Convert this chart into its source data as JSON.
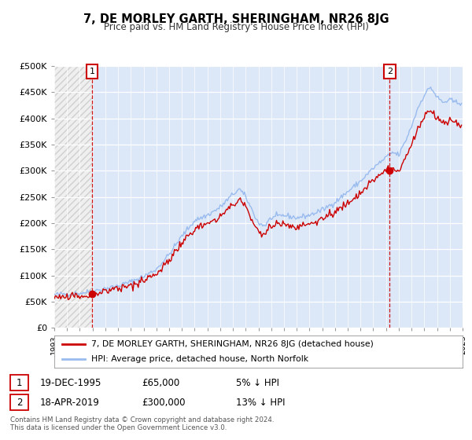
{
  "title": "7, DE MORLEY GARTH, SHERINGHAM, NR26 8JG",
  "subtitle": "Price paid vs. HM Land Registry's House Price Index (HPI)",
  "legend_line1": "7, DE MORLEY GARTH, SHERINGHAM, NR26 8JG (detached house)",
  "legend_line2": "HPI: Average price, detached house, North Norfolk",
  "annotation1_date": "19-DEC-1995",
  "annotation1_price": "£65,000",
  "annotation1_hpi": "5% ↓ HPI",
  "annotation2_date": "18-APR-2019",
  "annotation2_price": "£300,000",
  "annotation2_hpi": "13% ↓ HPI",
  "footer_line1": "Contains HM Land Registry data © Crown copyright and database right 2024.",
  "footer_line2": "This data is licensed under the Open Government Licence v3.0.",
  "sale1_year": 1995.96,
  "sale1_value": 65000,
  "sale2_year": 2019.29,
  "sale2_value": 300000,
  "price_color": "#cc0000",
  "hpi_color": "#99bbee",
  "plot_bg_right": "#dce8f8",
  "plot_bg_left": "#e8e8e8",
  "ylim": [
    0,
    500000
  ],
  "yticks": [
    0,
    50000,
    100000,
    150000,
    200000,
    250000,
    300000,
    350000,
    400000,
    450000,
    500000
  ],
  "xmin": 1993,
  "xmax": 2025,
  "hpi_anchors_x": [
    1993.0,
    1994.0,
    1995.0,
    1996.0,
    1997.0,
    1998.0,
    1999.0,
    2000.0,
    2001.0,
    2002.0,
    2003.0,
    2004.0,
    2005.0,
    2006.0,
    2007.0,
    2007.5,
    2008.0,
    2008.5,
    2009.0,
    2009.5,
    2010.0,
    2011.0,
    2012.0,
    2013.0,
    2014.0,
    2015.0,
    2016.0,
    2017.0,
    2018.0,
    2019.0,
    2019.5,
    2020.0,
    2020.5,
    2021.0,
    2021.5,
    2022.0,
    2022.5,
    2023.0,
    2023.5,
    2024.0,
    2024.5
  ],
  "hpi_anchors_y": [
    63000,
    65000,
    66000,
    70000,
    75000,
    80000,
    88000,
    98000,
    112000,
    140000,
    175000,
    205000,
    215000,
    230000,
    255000,
    265000,
    250000,
    225000,
    200000,
    195000,
    210000,
    215000,
    210000,
    215000,
    225000,
    240000,
    260000,
    280000,
    305000,
    325000,
    335000,
    330000,
    355000,
    385000,
    420000,
    445000,
    460000,
    440000,
    430000,
    435000,
    430000
  ]
}
